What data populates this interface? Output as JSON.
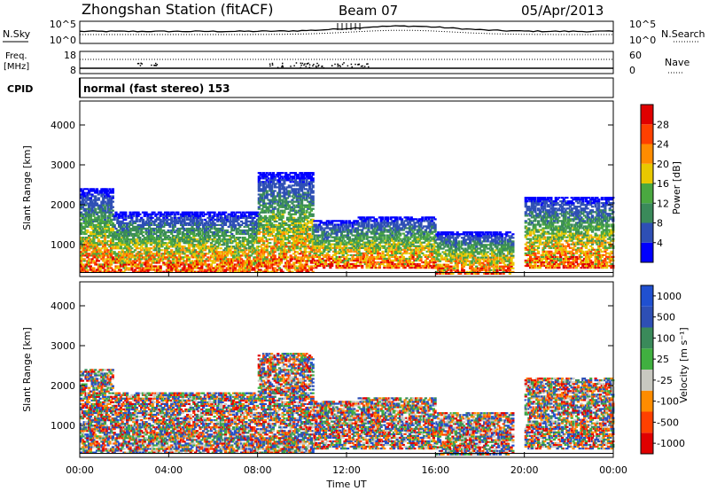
{
  "header": {
    "station": "Zhongshan Station (fitACF)",
    "beam": "Beam 07",
    "date": "05/Apr/2013"
  },
  "noise_panel": {
    "left_label": "N.Sky",
    "right_label": "N.Search",
    "ticks_left": [
      "10^5",
      "10^0"
    ],
    "ticks_right": [
      "10^5",
      "10^0"
    ]
  },
  "freq_panel": {
    "left_label_1": "Freq.",
    "left_label_2": "[MHz]",
    "right_label": "Nave",
    "ticks_left": [
      "18",
      "8"
    ],
    "ticks_right": [
      "60",
      "0"
    ]
  },
  "cpid": {
    "label": "CPID",
    "value": "normal (fast stereo) 153"
  },
  "colors": {
    "power": [
      "#0000ff",
      "#2e4fb5",
      "#3a8a5a",
      "#4aa840",
      "#e8c800",
      "#ff8c00",
      "#ff4000",
      "#e00000"
    ],
    "velocity": [
      "#e00000",
      "#ff4000",
      "#ff8c00",
      "#c8c8c0",
      "#40b040",
      "#3a8a5a",
      "#2e4fb5",
      "#2050d0"
    ]
  },
  "chart_data": [
    {
      "type": "heatmap",
      "name": "power",
      "ylabel": "Slant Range [km]",
      "yticks": [
        "1000",
        "2000",
        "3000",
        "4000"
      ],
      "ylim": [
        200,
        4600
      ],
      "xlim": [
        0,
        24
      ],
      "colorbar": {
        "label": "Power [dB]",
        "ticks": [
          "4",
          "8",
          "12",
          "16",
          "20",
          "24",
          "28"
        ],
        "range": [
          0,
          32
        ]
      },
      "echo_regions_range_km": [
        {
          "t0": 0.0,
          "t1": 1.5,
          "r0": 300,
          "r1": 2400
        },
        {
          "t0": 1.5,
          "t1": 5.0,
          "r0": 300,
          "r1": 1800
        },
        {
          "t0": 5.0,
          "t1": 8.0,
          "r0": 300,
          "r1": 1800
        },
        {
          "t0": 8.0,
          "t1": 10.5,
          "r0": 300,
          "r1": 2800
        },
        {
          "t0": 10.5,
          "t1": 12.5,
          "r0": 400,
          "r1": 1600
        },
        {
          "t0": 12.5,
          "t1": 16.0,
          "r0": 400,
          "r1": 1700
        },
        {
          "t0": 16.0,
          "t1": 19.5,
          "r0": 250,
          "r1": 1300
        },
        {
          "t0": 20.0,
          "t1": 24.0,
          "r0": 400,
          "r1": 2200
        }
      ]
    },
    {
      "type": "heatmap",
      "name": "velocity",
      "ylabel": "Slant Range [km]",
      "yticks": [
        "1000",
        "2000",
        "3000",
        "4000"
      ],
      "ylim": [
        200,
        4600
      ],
      "xlim": [
        0,
        24
      ],
      "colorbar": {
        "label": "Velocity [m s⁻¹]",
        "ticks": [
          "-1000",
          "-500",
          "-100",
          "-25",
          "25",
          "100",
          "500",
          "1000"
        ]
      },
      "xticks": [
        "00:00",
        "04:00",
        "08:00",
        "12:00",
        "16:00",
        "20:00",
        "00:00"
      ],
      "xlabel": "Time UT",
      "echo_regions_range_km": [
        {
          "t0": 0.0,
          "t1": 1.5,
          "r0": 300,
          "r1": 2400
        },
        {
          "t0": 1.5,
          "t1": 5.0,
          "r0": 300,
          "r1": 1800
        },
        {
          "t0": 5.0,
          "t1": 8.0,
          "r0": 300,
          "r1": 1800
        },
        {
          "t0": 8.0,
          "t1": 10.5,
          "r0": 300,
          "r1": 2800
        },
        {
          "t0": 10.5,
          "t1": 12.5,
          "r0": 400,
          "r1": 1600
        },
        {
          "t0": 12.5,
          "t1": 16.0,
          "r0": 400,
          "r1": 1700
        },
        {
          "t0": 16.0,
          "t1": 19.5,
          "r0": 250,
          "r1": 1300
        },
        {
          "t0": 20.0,
          "t1": 24.0,
          "r0": 400,
          "r1": 2200
        }
      ]
    }
  ]
}
